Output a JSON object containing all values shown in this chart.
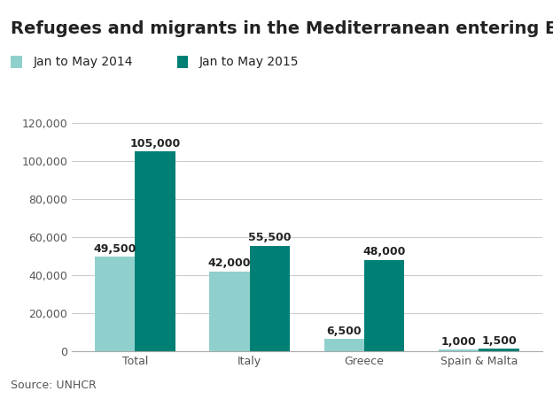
{
  "title": "Refugees and migrants in the Mediterranean entering Europe",
  "categories": [
    "Total",
    "Italy",
    "Greece",
    "Spain & Malta"
  ],
  "series": [
    {
      "label": "Jan to May 2014",
      "color": "#90d0cc",
      "values": [
        49500,
        42000,
        6500,
        1000
      ]
    },
    {
      "label": "Jan to May 2015",
      "color": "#008075",
      "values": [
        105000,
        55500,
        48000,
        1500
      ]
    }
  ],
  "ylim": [
    0,
    130000
  ],
  "yticks": [
    0,
    20000,
    40000,
    60000,
    80000,
    100000,
    120000
  ],
  "ytick_labels": [
    "0",
    "20,000",
    "40,000",
    "60,000",
    "80,000",
    "100,000",
    "120,000"
  ],
  "bar_labels_2014": [
    "49,500",
    "42,000",
    "6,500",
    "1,000"
  ],
  "bar_labels_2015": [
    "105,000",
    "55,500",
    "48,000",
    "1,500"
  ],
  "source": "Source: UNHCR",
  "background_color": "#ffffff",
  "grid_color": "#cccccc",
  "title_fontsize": 14,
  "label_fontsize": 9,
  "legend_fontsize": 10,
  "source_fontsize": 9,
  "bar_width": 0.35,
  "title_color": "#222222",
  "tick_label_color": "#555555",
  "bar_label_color": "#222222"
}
